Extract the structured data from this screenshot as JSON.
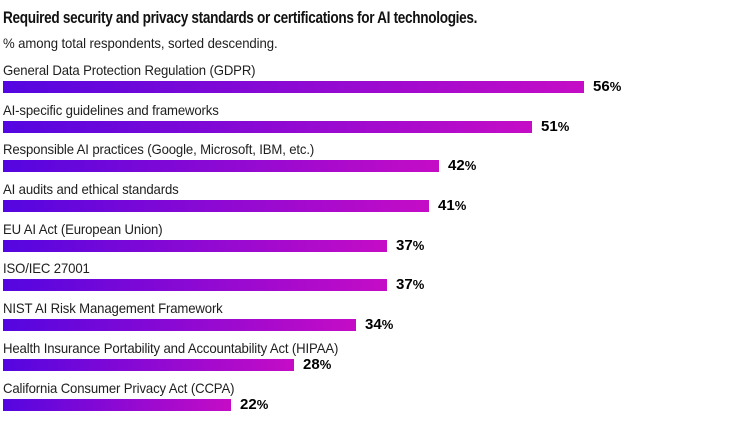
{
  "header": {
    "title": "Required security and privacy standards or certifications for AI technologies.",
    "subtitle": "% among total respondents, sorted descending."
  },
  "chart_data": {
    "type": "bar",
    "orientation": "horizontal",
    "title": "Required security and privacy standards or certifications for AI technologies.",
    "subtitle": "% among total respondents, sorted descending.",
    "categories": [
      "General Data Protection Regulation (GDPR)",
      "AI-specific guidelines and frameworks",
      "Responsible AI practices (Google, Microsoft, IBM, etc.)",
      "AI audits and ethical standards",
      "EU AI Act (European Union)",
      "ISO/IEC 27001",
      "NIST AI Risk Management Framework",
      "Health Insurance Portability and Accountability Act (HIPAA)",
      "California Consumer Privacy Act (CCPA)"
    ],
    "values": [
      56,
      51,
      42,
      41,
      37,
      37,
      34,
      28,
      22
    ],
    "value_suffix": "%",
    "xlim": [
      0,
      60
    ],
    "sort": "descending",
    "grid": false,
    "legend": false,
    "data_labels": "end-of-bar",
    "bar_gradient_start": "#5406e0",
    "bar_gradient_end": "#c50cc6",
    "label_color": "#1e1e1e",
    "value_color": "#000000"
  }
}
